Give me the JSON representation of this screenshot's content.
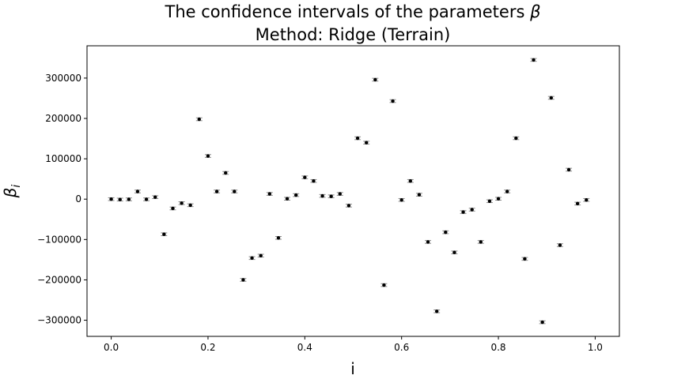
{
  "chart_data": {
    "type": "scatter",
    "title_line1": "The confidence intervals of the parameters ",
    "title_symbol": "β",
    "title_line2": "Method: Ridge (Terrain)",
    "xlabel": "i",
    "ylabel_symbol": "β",
    "ylabel_subscript": "i",
    "xlim": [
      -0.05,
      1.05
    ],
    "ylim": [
      -340000,
      380000
    ],
    "xticks": [
      0.0,
      0.2,
      0.4,
      0.6,
      0.8,
      1.0
    ],
    "xtick_labels": [
      "0.0",
      "0.2",
      "0.4",
      "0.6",
      "0.8",
      "1.0"
    ],
    "yticks": [
      -300000,
      -200000,
      -100000,
      0,
      100000,
      200000,
      300000
    ],
    "ytick_labels": [
      "−300000",
      "−200000",
      "−100000",
      "0",
      "100000",
      "200000",
      "300000"
    ],
    "grid": false,
    "error_bar_halfwidth": 3500,
    "marker_color": "#000000",
    "error_color": "#888888",
    "points": [
      {
        "x": 0.0,
        "y": 0
      },
      {
        "x": 0.0182,
        "y": -1000
      },
      {
        "x": 0.0364,
        "y": -500
      },
      {
        "x": 0.0545,
        "y": 19000
      },
      {
        "x": 0.0727,
        "y": -500
      },
      {
        "x": 0.0909,
        "y": 5000
      },
      {
        "x": 0.1091,
        "y": -87000
      },
      {
        "x": 0.1273,
        "y": -23000
      },
      {
        "x": 0.1455,
        "y": -10000
      },
      {
        "x": 0.1636,
        "y": -15000
      },
      {
        "x": 0.1818,
        "y": 198000
      },
      {
        "x": 0.2,
        "y": 107000
      },
      {
        "x": 0.2182,
        "y": 19000
      },
      {
        "x": 0.2364,
        "y": 65000
      },
      {
        "x": 0.2545,
        "y": 19000
      },
      {
        "x": 0.2727,
        "y": -200000
      },
      {
        "x": 0.2909,
        "y": -146000
      },
      {
        "x": 0.3091,
        "y": -140000
      },
      {
        "x": 0.3273,
        "y": 13000
      },
      {
        "x": 0.3455,
        "y": -96000
      },
      {
        "x": 0.3636,
        "y": 1000
      },
      {
        "x": 0.3818,
        "y": 10000
      },
      {
        "x": 0.4,
        "y": 54000
      },
      {
        "x": 0.4182,
        "y": 45000
      },
      {
        "x": 0.4364,
        "y": 8000
      },
      {
        "x": 0.4545,
        "y": 7000
      },
      {
        "x": 0.4727,
        "y": 13000
      },
      {
        "x": 0.4909,
        "y": -16000
      },
      {
        "x": 0.5091,
        "y": 151000
      },
      {
        "x": 0.5273,
        "y": 140000
      },
      {
        "x": 0.5455,
        "y": 296000
      },
      {
        "x": 0.5636,
        "y": -213000
      },
      {
        "x": 0.5818,
        "y": 243000
      },
      {
        "x": 0.6,
        "y": -2000
      },
      {
        "x": 0.6182,
        "y": 45000
      },
      {
        "x": 0.6364,
        "y": 11000
      },
      {
        "x": 0.6545,
        "y": -106000
      },
      {
        "x": 0.6727,
        "y": -278000
      },
      {
        "x": 0.6909,
        "y": -82000
      },
      {
        "x": 0.7091,
        "y": -132000
      },
      {
        "x": 0.7273,
        "y": -32000
      },
      {
        "x": 0.7455,
        "y": -26000
      },
      {
        "x": 0.7636,
        "y": -106000
      },
      {
        "x": 0.7818,
        "y": -5000
      },
      {
        "x": 0.8,
        "y": 1000
      },
      {
        "x": 0.8182,
        "y": 19000
      },
      {
        "x": 0.8364,
        "y": 151000
      },
      {
        "x": 0.8545,
        "y": -148000
      },
      {
        "x": 0.8727,
        "y": 345000
      },
      {
        "x": 0.8909,
        "y": -305000
      },
      {
        "x": 0.9091,
        "y": 251000
      },
      {
        "x": 0.9273,
        "y": -114000
      },
      {
        "x": 0.9455,
        "y": 73000
      },
      {
        "x": 0.9636,
        "y": -11000
      },
      {
        "x": 0.9818,
        "y": -2000
      }
    ]
  }
}
